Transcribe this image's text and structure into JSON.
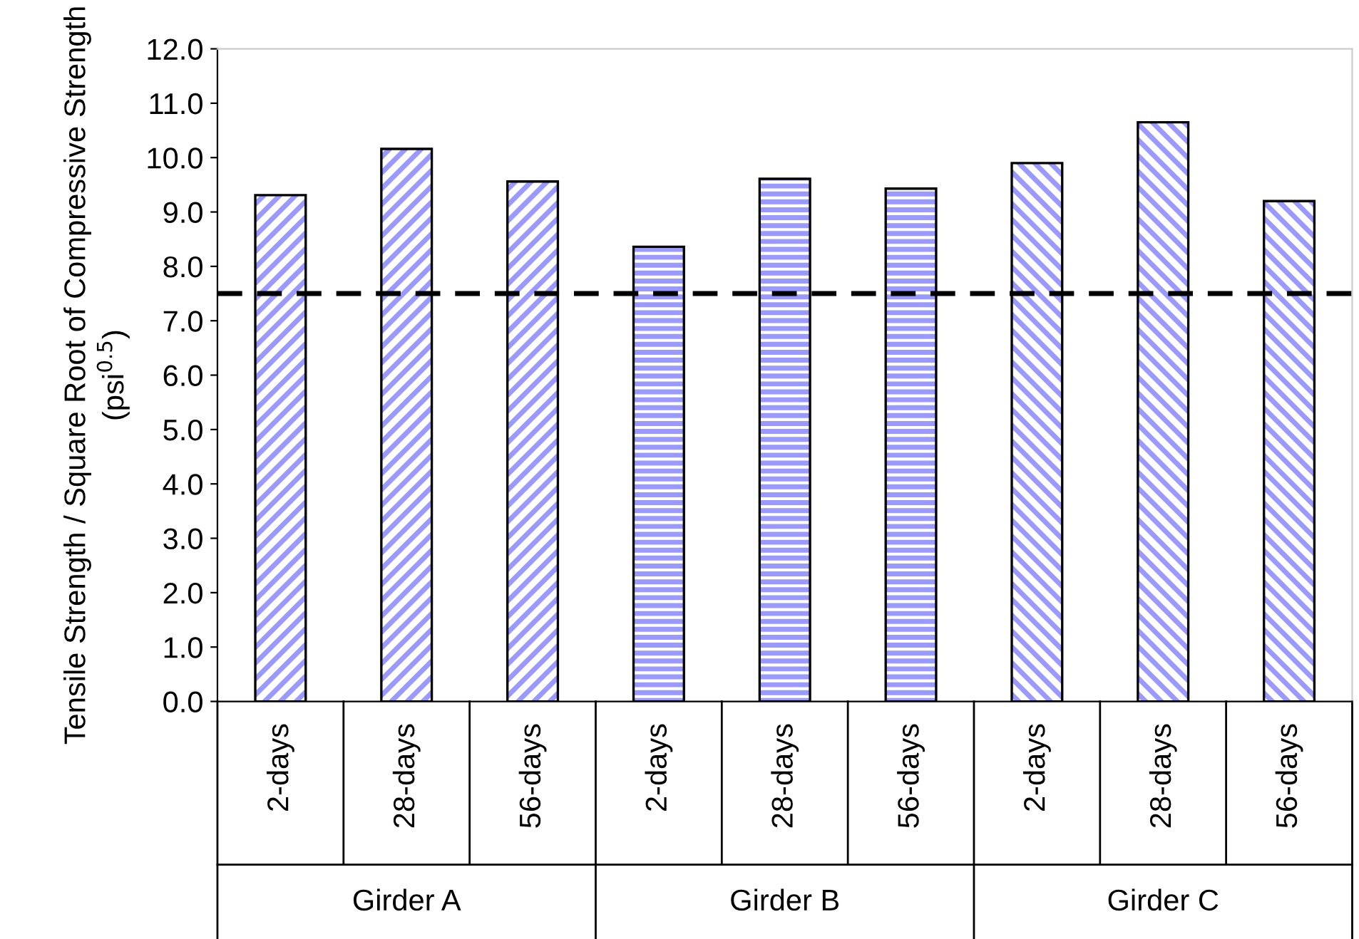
{
  "chart_data": {
    "type": "bar",
    "ylabel": "Tensile Strength / Square Root of Compressive Strength\n(psi$^{0.5}$)",
    "categories": [
      "2-days",
      "28-days",
      "56-days",
      "2-days",
      "28-days",
      "56-days",
      "2-days",
      "28-days",
      "56-days"
    ],
    "values": [
      9.31,
      10.16,
      9.56,
      8.36,
      9.61,
      9.43,
      9.9,
      10.65,
      9.2
    ],
    "color": "#9999ff",
    "ylim": [
      0,
      12
    ],
    "yticks": [
      {
        "value": 0,
        "label": "0.0"
      },
      {
        "value": 1,
        "label": "1.0"
      },
      {
        "value": 2,
        "label": "2.0"
      },
      {
        "value": 3,
        "label": "3.0"
      },
      {
        "value": 4,
        "label": "4.0"
      },
      {
        "value": 5,
        "label": "5.0"
      },
      {
        "value": 6,
        "label": "6.0"
      },
      {
        "value": 7,
        "label": "7.0"
      },
      {
        "value": 8,
        "label": "8.0"
      },
      {
        "value": 9,
        "label": "9.0"
      },
      {
        "value": 10,
        "label": "10.0"
      },
      {
        "value": 11,
        "label": "11.0"
      },
      {
        "value": 12,
        "label": "12.0"
      }
    ],
    "ref_lines": [
      {
        "axis": "y",
        "value": 7.5,
        "color": "#000000",
        "line_style": "dashed"
      }
    ],
    "annotations": [
      "Girder A",
      "Girder B",
      "Girder C"
    ],
    "grid": false,
    "legend": false
  }
}
